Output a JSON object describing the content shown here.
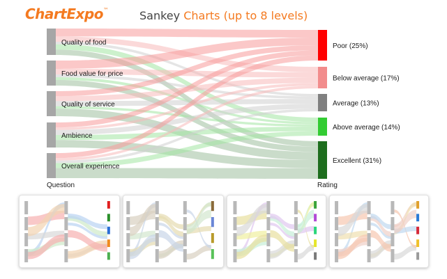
{
  "header": {
    "brand": "ChartExpo",
    "brand_mark": "™",
    "title_prefix": "Sankey ",
    "title_accent": "Charts (up to 8 levels)"
  },
  "colors": {
    "brand": "#f47a20",
    "source_node": "#a6a6a6",
    "poor": "#ff0000",
    "below_average": "#f28c8c",
    "average": "#808080",
    "above_average": "#33cc33",
    "excellent": "#1e6e1e"
  },
  "diagram": {
    "left_axis_label": "Question",
    "right_axis_label": "Rating",
    "sources": [
      {
        "id": "food",
        "label": "Quality of food"
      },
      {
        "id": "value",
        "label": "Food value for price"
      },
      {
        "id": "service",
        "label": "Quality of service"
      },
      {
        "id": "ambience",
        "label": "Ambience"
      },
      {
        "id": "overall",
        "label": "Overall experience"
      }
    ],
    "targets": [
      {
        "id": "poor",
        "label": "Poor (25%)",
        "color": "#ff0000",
        "link_color": "#f79a9a"
      },
      {
        "id": "below",
        "label": "Below average (17%)",
        "color": "#f28c8c",
        "link_color": "#f7baba"
      },
      {
        "id": "average",
        "label": "Average (13%)",
        "color": "#808080",
        "link_color": "#cfcfcf"
      },
      {
        "id": "above",
        "label": "Above average (14%)",
        "color": "#33cc33",
        "link_color": "#a3e6a3"
      },
      {
        "id": "excellent",
        "label": "Excellent (31%)",
        "color": "#1e6e1e",
        "link_color": "#9ebf9e"
      }
    ]
  },
  "thumbnails": [
    {
      "id": "thumb-1",
      "link_colors": [
        "#f7b0b0",
        "#b9d3f2",
        "#cfe9c9",
        "#d8d8d8",
        "#f2d3b0"
      ],
      "node_colors": [
        "#e02020",
        "#2a8f2a",
        "#2a6fd6",
        "#f08a1e",
        "#4caf50"
      ]
    },
    {
      "id": "thumb-2",
      "link_colors": [
        "#d9d0c0",
        "#c9d6e8",
        "#e6dcb0",
        "#d3e7cf"
      ],
      "node_colors": [
        "#8a6a3a",
        "#6a86d6",
        "#b89a2a",
        "#59c259"
      ]
    },
    {
      "id": "thumb-3",
      "link_colors": [
        "#e8e0a0",
        "#e0c8f0",
        "#c8f0d8",
        "#f0f0a0",
        "#d8d8d8"
      ],
      "node_colors": [
        "#3aa33a",
        "#b24ad6",
        "#2ad67a",
        "#e6e62a",
        "#7a7a7a"
      ]
    },
    {
      "id": "thumb-4",
      "link_colors": [
        "#f7c8b0",
        "#c0d8f0",
        "#f0d0c8",
        "#f0e0b0",
        "#d8d8d8"
      ],
      "node_colors": [
        "#e0a02a",
        "#2a7ad6",
        "#d62a3a",
        "#f0c02a",
        "#9a9a9a"
      ]
    }
  ]
}
